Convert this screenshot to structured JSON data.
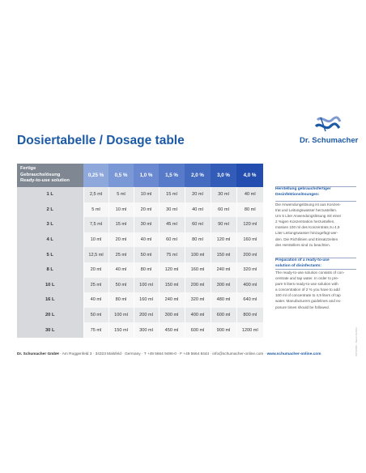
{
  "brand": {
    "name": "Dr. Schumacher",
    "logo_icon": "wave-s-logo-icon",
    "color": "#1d5aa6"
  },
  "title": "Dosiertabelle / Dosage table",
  "table": {
    "header_label_lines": [
      "Fertige",
      "Gebrauchslösung",
      "Ready-to-use solution"
    ],
    "concentrations": [
      "0,25 %",
      "0,5 %",
      "1,0 %",
      "1,5 %",
      "2,0 %",
      "3,0 %",
      "4,0 %"
    ],
    "rows": [
      {
        "volume": "1 L",
        "values": [
          "2,5 ml",
          "5 ml",
          "10 ml",
          "15 ml",
          "20 ml",
          "30 ml",
          "40 ml"
        ]
      },
      {
        "volume": "2 L",
        "values": [
          "5 ml",
          "10 ml",
          "20 ml",
          "30 ml",
          "40 ml",
          "60 ml",
          "80 ml"
        ]
      },
      {
        "volume": "3 L",
        "values": [
          "7,5 ml",
          "15 ml",
          "30 ml",
          "45 ml",
          "60 ml",
          "90 ml",
          "120 ml"
        ]
      },
      {
        "volume": "4 L",
        "values": [
          "10 ml",
          "20 ml",
          "40 ml",
          "60 ml",
          "80 ml",
          "120 ml",
          "160 ml"
        ]
      },
      {
        "volume": "5 L",
        "values": [
          "12,5 ml",
          "25 ml",
          "50 ml",
          "75 ml",
          "100 ml",
          "150 ml",
          "200 ml"
        ]
      },
      {
        "volume": "8 L",
        "values": [
          "20 ml",
          "40 ml",
          "80 ml",
          "120 ml",
          "160 ml",
          "240 ml",
          "320 ml"
        ]
      },
      {
        "volume": "10 L",
        "values": [
          "25 ml",
          "50 ml",
          "100 ml",
          "150 ml",
          "200 ml",
          "300 ml",
          "400 ml"
        ]
      },
      {
        "volume": "16 L",
        "values": [
          "40 ml",
          "80 ml",
          "160 ml",
          "240 ml",
          "320 ml",
          "480 ml",
          "640 ml"
        ]
      },
      {
        "volume": "20 L",
        "values": [
          "50 ml",
          "100 ml",
          "200 ml",
          "300 ml",
          "400 ml",
          "600 ml",
          "800 ml"
        ]
      },
      {
        "volume": "30 L",
        "values": [
          "75 ml",
          "150 ml",
          "300 ml",
          "450 ml",
          "600 ml",
          "900 ml",
          "1200 ml"
        ]
      }
    ]
  },
  "side_de": {
    "heading_lines": [
      "Herstellung gebrauchsfertiger",
      "Desinfektionslösungen:"
    ],
    "body_lines": [
      "Die Anwendungslösung ist aus Konzen-",
      "trat und Leitungswasser herzustellen.",
      "Um 5 Liter Anwendungslösung mit einer",
      "2 %igen Konzentration herzustellen,",
      "müssen 100 ml des Konzentrats zu 4,9",
      "Liter Leitungswasser hinzugefügt wer-",
      "den. Die Richtlinien und Einsatzzeiten",
      "des Herstellers sind zu beachten."
    ]
  },
  "side_en": {
    "heading_lines": [
      "Preparation of a ready-to-use",
      "solution of disinfectants:"
    ],
    "body_lines": [
      "The ready-to-use solution consists of con-",
      "centrate and tap water. In order to pre-",
      "pare 5 liters ready-to-use solution with",
      "a concentration of 2 % you have to add",
      "100 ml of concentrate to 4,9 liters of tap",
      "water. Manufacturers guidelines and ex-",
      "posure times should be followed."
    ]
  },
  "vertical_note": "PIP 00000 · Stand 11/2021",
  "footer": {
    "company": "Dr. Schumacher GmbH",
    "address": " · Am Roggenfeld 3 · 34323 Malsfeld · Germany · T +49 5664 9496-0 · F +49 5664 8444 · info@schumacher-online.com · ",
    "website": "www.schumacher-online.com"
  }
}
